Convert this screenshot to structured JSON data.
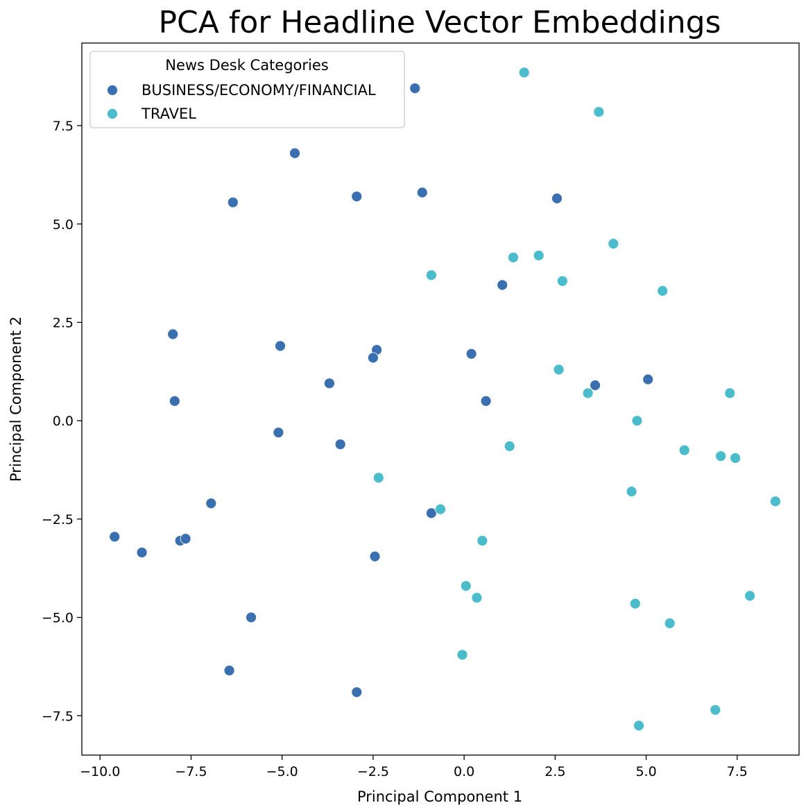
{
  "chart_data": {
    "type": "scatter",
    "title": "PCA for Headline Vector Embeddings",
    "xlabel": "Principal Component 1",
    "ylabel": "Principal Component 2",
    "xlim": [
      -10.5,
      9.2
    ],
    "ylim": [
      -8.5,
      9.6
    ],
    "xticks": [
      -10.0,
      -7.5,
      -5.0,
      -2.5,
      0.0,
      2.5,
      5.0,
      7.5
    ],
    "xtick_labels": [
      "−10.0",
      "−7.5",
      "−5.0",
      "−2.5",
      "0.0",
      "2.5",
      "5.0",
      "7.5"
    ],
    "yticks": [
      -7.5,
      -5.0,
      -2.5,
      0.0,
      2.5,
      5.0,
      7.5
    ],
    "ytick_labels": [
      "−7.5",
      "−5.0",
      "−2.5",
      "0.0",
      "2.5",
      "5.0",
      "7.5"
    ],
    "grid": false,
    "legend": {
      "title": "News Desk Categories",
      "position": "top-left"
    },
    "series": [
      {
        "name": "BUSINESS/ECONOMY/FINANCIAL",
        "color": "#3a6fb0",
        "points": [
          [
            -1.35,
            8.45
          ],
          [
            -4.65,
            6.8
          ],
          [
            -6.35,
            5.55
          ],
          [
            -2.95,
            5.7
          ],
          [
            -1.15,
            5.8
          ],
          [
            2.55,
            5.65
          ],
          [
            1.05,
            3.45
          ],
          [
            -8.0,
            2.2
          ],
          [
            -5.05,
            1.9
          ],
          [
            -2.4,
            1.8
          ],
          [
            -2.5,
            1.6
          ],
          [
            0.2,
            1.7
          ],
          [
            -3.7,
            0.95
          ],
          [
            -7.95,
            0.5
          ],
          [
            3.6,
            0.9
          ],
          [
            5.05,
            1.05
          ],
          [
            0.6,
            0.5
          ],
          [
            -5.1,
            -0.3
          ],
          [
            -3.4,
            -0.6
          ],
          [
            -6.95,
            -2.1
          ],
          [
            -9.6,
            -2.95
          ],
          [
            -8.85,
            -3.35
          ],
          [
            -7.8,
            -3.05
          ],
          [
            -7.65,
            -3.0
          ],
          [
            -0.9,
            -2.35
          ],
          [
            -2.45,
            -3.45
          ],
          [
            -5.85,
            -5.0
          ],
          [
            -6.45,
            -6.35
          ],
          [
            -2.95,
            -6.9
          ]
        ]
      },
      {
        "name": "TRAVEL",
        "color": "#4bbccb",
        "points": [
          [
            1.65,
            8.85
          ],
          [
            3.7,
            7.85
          ],
          [
            4.1,
            4.5
          ],
          [
            1.35,
            4.15
          ],
          [
            2.05,
            4.2
          ],
          [
            2.7,
            3.55
          ],
          [
            -0.9,
            3.7
          ],
          [
            5.45,
            3.3
          ],
          [
            2.6,
            1.3
          ],
          [
            3.4,
            0.7
          ],
          [
            7.3,
            0.7
          ],
          [
            4.75,
            0.0
          ],
          [
            1.25,
            -0.65
          ],
          [
            6.05,
            -0.75
          ],
          [
            7.05,
            -0.9
          ],
          [
            7.45,
            -0.95
          ],
          [
            4.6,
            -1.8
          ],
          [
            8.55,
            -2.05
          ],
          [
            -2.35,
            -1.45
          ],
          [
            -0.65,
            -2.25
          ],
          [
            0.5,
            -3.05
          ],
          [
            0.05,
            -4.2
          ],
          [
            0.35,
            -4.5
          ],
          [
            4.7,
            -4.65
          ],
          [
            7.85,
            -4.45
          ],
          [
            5.65,
            -5.15
          ],
          [
            -0.05,
            -5.95
          ],
          [
            6.9,
            -7.35
          ],
          [
            4.8,
            -7.75
          ]
        ]
      }
    ]
  }
}
